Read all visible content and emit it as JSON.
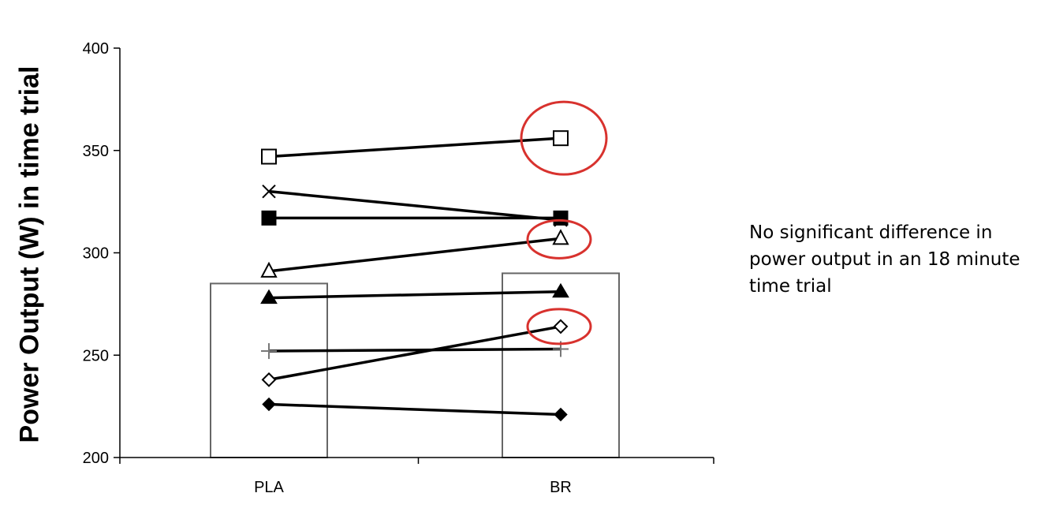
{
  "chart_data": {
    "type": "bar",
    "categories": [
      "PLA",
      "BR"
    ],
    "bar_means": [
      285,
      290
    ],
    "ylabel": "Power Output (W) in time trial",
    "ylim": [
      200,
      400
    ],
    "yticks": [
      200,
      250,
      300,
      350,
      400
    ],
    "subjects": [
      {
        "marker": "open-square",
        "values": [
          347,
          356
        ],
        "highlighted_br": true
      },
      {
        "marker": "x",
        "values": [
          330,
          316
        ],
        "highlighted_br": false
      },
      {
        "marker": "filled-square",
        "values": [
          317,
          317
        ],
        "highlighted_br": false
      },
      {
        "marker": "open-triangle",
        "values": [
          291,
          307
        ],
        "highlighted_br": true
      },
      {
        "marker": "filled-triangle",
        "values": [
          278,
          281
        ],
        "highlighted_br": false
      },
      {
        "marker": "plus",
        "values": [
          252,
          253
        ],
        "highlighted_br": false
      },
      {
        "marker": "open-diamond",
        "values": [
          238,
          264
        ],
        "highlighted_br": true
      },
      {
        "marker": "filled-diamond",
        "values": [
          226,
          221
        ],
        "highlighted_br": false
      }
    ],
    "highlight_color": "#d8322e",
    "legend": "none",
    "grid": false
  },
  "annotation": {
    "text": "No significant difference in power output in an 18 minute time trial"
  }
}
